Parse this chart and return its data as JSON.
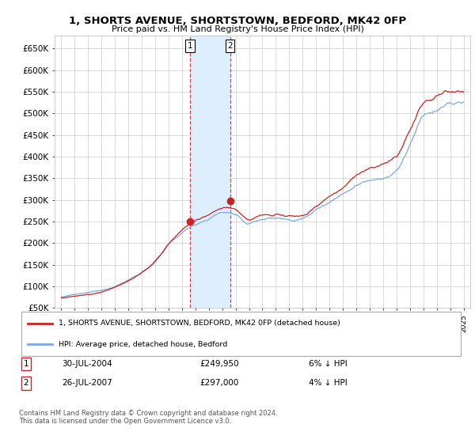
{
  "title": "1, SHORTS AVENUE, SHORTSTOWN, BEDFORD, MK42 0FP",
  "subtitle": "Price paid vs. HM Land Registry's House Price Index (HPI)",
  "background_color": "#ffffff",
  "plot_bg_color": "#ffffff",
  "grid_color": "#cccccc",
  "hpi_line_color": "#7aaadd",
  "price_line_color": "#cc2222",
  "shaded_region_color": "#ddeeff",
  "sale1_date": "30-JUL-2004",
  "sale1_price": "£249,950",
  "sale1_hpi": "6% ↓ HPI",
  "sale2_date": "26-JUL-2007",
  "sale2_price": "£297,000",
  "sale2_hpi": "4% ↓ HPI",
  "legend_label1": "1, SHORTS AVENUE, SHORTSTOWN, BEDFORD, MK42 0FP (detached house)",
  "legend_label2": "HPI: Average price, detached house, Bedford",
  "footer": "Contains HM Land Registry data © Crown copyright and database right 2024.\nThis data is licensed under the Open Government Licence v3.0.",
  "sale1_x": 2004.58,
  "sale2_x": 2007.58,
  "sale1_y": 249950,
  "sale2_y": 297000,
  "ylim": [
    50000,
    680000
  ],
  "xlim": [
    1994.5,
    2025.5
  ],
  "ytick_vals": [
    50000,
    100000,
    150000,
    200000,
    250000,
    300000,
    350000,
    400000,
    450000,
    500000,
    550000,
    600000,
    650000
  ],
  "ytick_labels": [
    "£50K",
    "£100K",
    "£150K",
    "£200K",
    "£250K",
    "£300K",
    "£350K",
    "£400K",
    "£450K",
    "£500K",
    "£550K",
    "£600K",
    "£650K"
  ]
}
